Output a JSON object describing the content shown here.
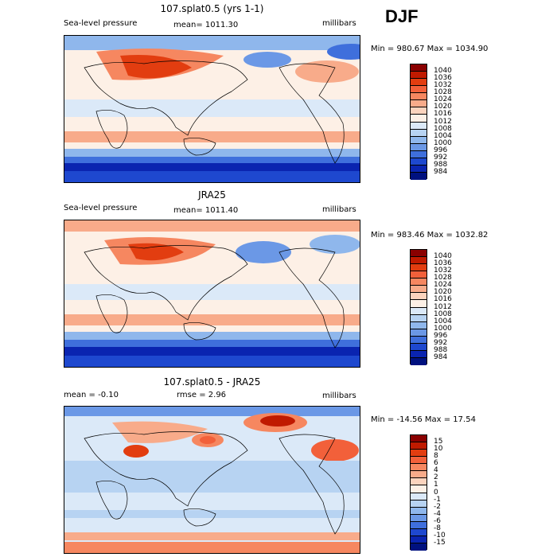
{
  "season": "DJF",
  "chart_data": [
    {
      "type": "heatmap",
      "title": "107.splat0.5 (yrs 1-1)",
      "left_label": "Sea-level pressure",
      "center_label": "mean= 1011.30",
      "right_label": "millibars",
      "min_max": "Min = 980.67 Max = 1034.90",
      "mean": 1011.3,
      "min": 980.67,
      "max": 1034.9,
      "units": "millibars",
      "colorbar_levels": [
        "1040",
        "1036",
        "1032",
        "1028",
        "1024",
        "1020",
        "1016",
        "1012",
        "1008",
        "1004",
        "1000",
        "996",
        "992",
        "988",
        "984"
      ],
      "colorbar_colors": [
        "#8a0000",
        "#c01a00",
        "#e23d10",
        "#f2603a",
        "#f68760",
        "#f8ab8a",
        "#fbd3bd",
        "#fdf0e6",
        "#dbe9f8",
        "#b7d3f2",
        "#8fb7ec",
        "#6b98e6",
        "#3f6fdc",
        "#1e48cf",
        "#0a24b0",
        "#00117f"
      ]
    },
    {
      "type": "heatmap",
      "title": "JRA25",
      "left_label": "Sea-level pressure",
      "center_label": "mean= 1011.40",
      "right_label": "millibars",
      "min_max": "Min = 983.46 Max = 1032.82",
      "mean": 1011.4,
      "min": 983.46,
      "max": 1032.82,
      "units": "millibars",
      "colorbar_levels": [
        "1040",
        "1036",
        "1032",
        "1028",
        "1024",
        "1020",
        "1016",
        "1012",
        "1008",
        "1004",
        "1000",
        "996",
        "992",
        "988",
        "984"
      ],
      "colorbar_colors": [
        "#8a0000",
        "#c01a00",
        "#e23d10",
        "#f2603a",
        "#f68760",
        "#f8ab8a",
        "#fbd3bd",
        "#fdf0e6",
        "#dbe9f8",
        "#b7d3f2",
        "#8fb7ec",
        "#6b98e6",
        "#3f6fdc",
        "#1e48cf",
        "#0a24b0",
        "#00117f"
      ]
    },
    {
      "type": "heatmap",
      "title": "107.splat0.5 - JRA25",
      "left_label": "mean =   -0.10",
      "center_label": "rmse =    2.96",
      "right_label": "millibars",
      "min_max": "Min = -14.56 Max =  17.54",
      "mean": -0.1,
      "rmse": 2.96,
      "min": -14.56,
      "max": 17.54,
      "units": "millibars",
      "colorbar_levels": [
        "15",
        "10",
        "8",
        "6",
        "4",
        "2",
        "1",
        "0",
        "-1",
        "-2",
        "-4",
        "-6",
        "-8",
        "-10",
        "-15"
      ],
      "colorbar_colors": [
        "#8a0000",
        "#c01a00",
        "#e23d10",
        "#f2603a",
        "#f68760",
        "#f8ab8a",
        "#fbd3bd",
        "#fdf0e6",
        "#dbe9f8",
        "#b7d3f2",
        "#8fb7ec",
        "#6b98e6",
        "#3f6fdc",
        "#1e48cf",
        "#0a24b0",
        "#00117f"
      ]
    }
  ]
}
